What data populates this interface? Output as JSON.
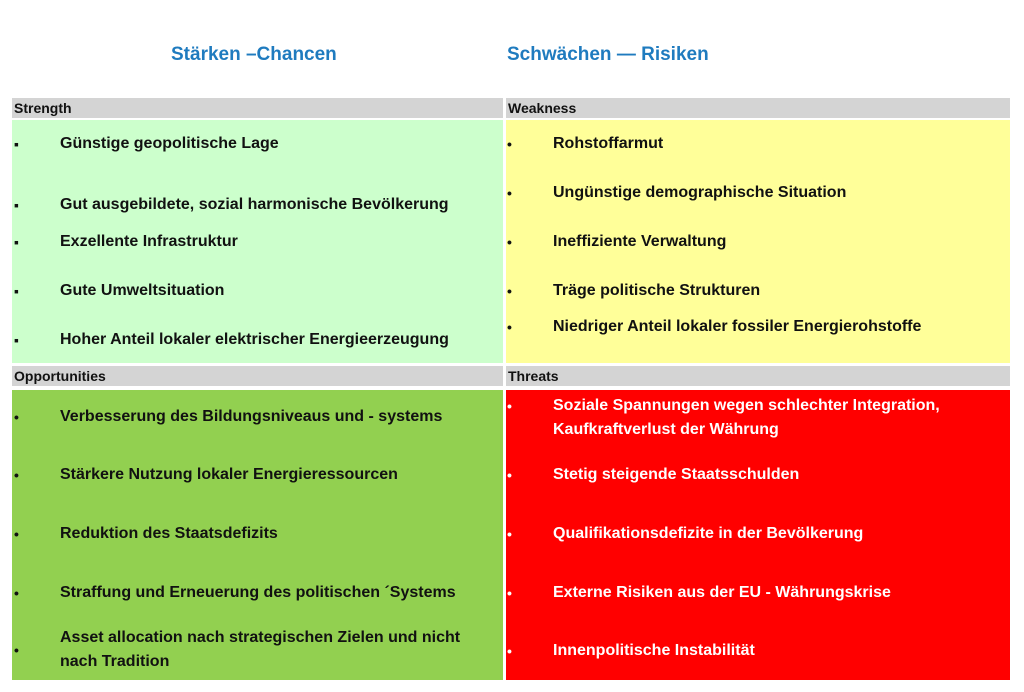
{
  "titles": {
    "left": "Stärken –Chancen",
    "right": "Schwächen — Risiken"
  },
  "colors": {
    "title": "#1f7bbf",
    "header": "#d4d4d4",
    "strength": "#ccffcc",
    "weakness": "#ffff99",
    "opportunities": "#92d050",
    "threats": "#ff0000"
  },
  "strength": {
    "label": "Strength",
    "bullet": "▪",
    "items": [
      "Günstige geopolitische Lage",
      "Gut ausgebildete, sozial harmonische Bevölkerung",
      "Exzellente Infrastruktur",
      "Gute Umweltsituation",
      "Hoher Anteil lokaler elektrischer Energieerzeugung"
    ]
  },
  "weakness": {
    "label": "Weakness",
    "bullet": "•",
    "items": [
      "Rohstoffarmut",
      "Ungünstige demographische Situation",
      "Ineffiziente Verwaltung",
      "Träge politische Strukturen",
      "Niedriger  Anteil lokaler fossiler  Energierohstoffe"
    ]
  },
  "opportunities": {
    "label": "Opportunities",
    "bullet": "•",
    "items": [
      "Verbesserung des Bildungsniveaus und - systems",
      "Stärkere Nutzung lokaler Energieressourcen",
      "Reduktion des Staatsdefizits",
      "Straffung und Erneuerung des politischen ´Systems",
      "Asset allocation nach  strategischen Zielen und nicht nach Tradition"
    ]
  },
  "threats": {
    "label": "Threats",
    "bullet": "•",
    "items": [
      "Soziale Spannungen   wegen schlechter Integration, Kaufkraftverlust der Währung",
      "Stetig steigende Staatsschulden",
      "Qualifikationsdefizite in der Bevölkerung",
      "Externe Risiken aus der EU - Währungskrise",
      "Innenpolitische Instabilität"
    ]
  }
}
